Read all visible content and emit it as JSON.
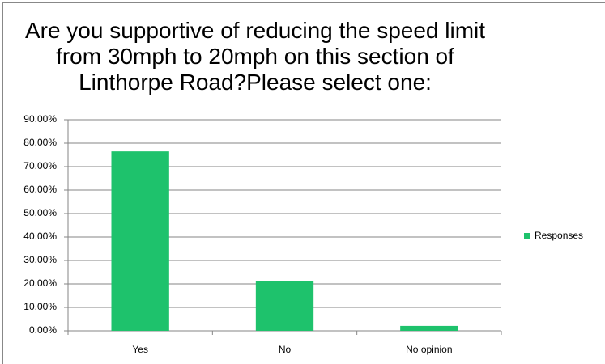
{
  "chart_data": {
    "type": "bar",
    "title": "Are you supportive of reducing the speed limit from 30mph to 20mph on this section of Linthorpe Road?Please select one:",
    "categories": [
      "Yes",
      "No",
      "No opinion"
    ],
    "series": [
      {
        "name": "Responses",
        "color": "#1ec26c",
        "values": [
          76.5,
          21.2,
          2.1
        ]
      }
    ],
    "ylim": [
      0,
      90
    ],
    "yticks": [
      {
        "value": 0,
        "label": "0.00%"
      },
      {
        "value": 10,
        "label": "10.00%"
      },
      {
        "value": 20,
        "label": "20.00%"
      },
      {
        "value": 30,
        "label": "30.00%"
      },
      {
        "value": 40,
        "label": "40.00%"
      },
      {
        "value": 50,
        "label": "50.00%"
      },
      {
        "value": 60,
        "label": "60.00%"
      },
      {
        "value": 70,
        "label": "70.00%"
      },
      {
        "value": 80,
        "label": "80.00%"
      },
      {
        "value": 90,
        "label": "90.00%"
      }
    ],
    "grid": true,
    "legend": "right"
  }
}
